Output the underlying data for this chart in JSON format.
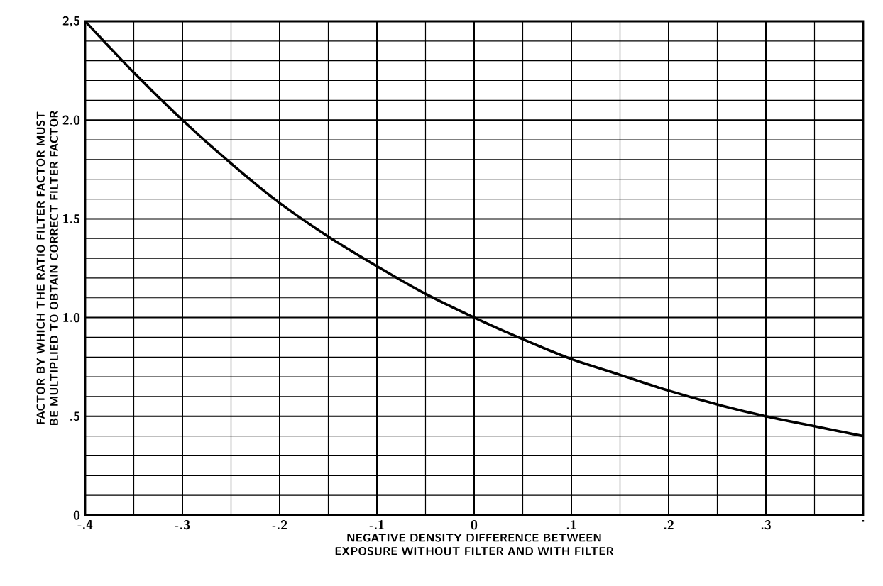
{
  "chart_data": {
    "type": "line",
    "xlabel": "NEGATIVE DENSITY DIFFERENCE BETWEEN EXPOSURE WITHOUT FILTER AND WITH FILTER",
    "ylabel": "FACTOR BY WHICH THE RATIO FILTER FACTOR MUST BE MULTIPLIED TO OBTAIN CORRECT FILTER FACTOR",
    "x": [
      -0.4,
      -0.35,
      -0.3,
      -0.25,
      -0.2,
      -0.15,
      -0.1,
      -0.05,
      0,
      0.05,
      0.1,
      0.15,
      0.2,
      0.25,
      0.3,
      0.35,
      0.4
    ],
    "series": [
      {
        "color": "#000000",
        "values": [
          2.5,
          2.24,
          2.0,
          1.78,
          1.58,
          1.41,
          1.26,
          1.12,
          1.0,
          0.89,
          0.79,
          0.71,
          0.63,
          0.56,
          0.5,
          0.45,
          0.4
        ]
      }
    ],
    "xlim": [
      -0.4,
      0.4
    ],
    "ylim": [
      0,
      2.5
    ],
    "xticks": [
      {
        "value": -0.4,
        "label": "-.4"
      },
      {
        "value": -0.3,
        "label": "-.3"
      },
      {
        "value": -0.2,
        "label": "-.2"
      },
      {
        "value": -0.1,
        "label": "-.1"
      },
      0,
      {
        "value": 0.1,
        "label": ".1"
      },
      {
        "value": 0.2,
        "label": ".2"
      },
      {
        "value": 0.3,
        "label": ".3"
      },
      {
        "value": 0.4,
        "label": "."
      }
    ],
    "yticks": [
      0,
      {
        "value": 0.5,
        "label": ".5"
      },
      {
        "value": 1.0,
        "label": "1.0"
      },
      {
        "value": 1.5,
        "label": "1.5"
      },
      {
        "value": 2.0,
        "label": "2.0"
      },
      {
        "value": 2.5,
        "label": "2,5"
      }
    ],
    "grid": true,
    "marker": "none",
    "line_style": "solid"
  }
}
